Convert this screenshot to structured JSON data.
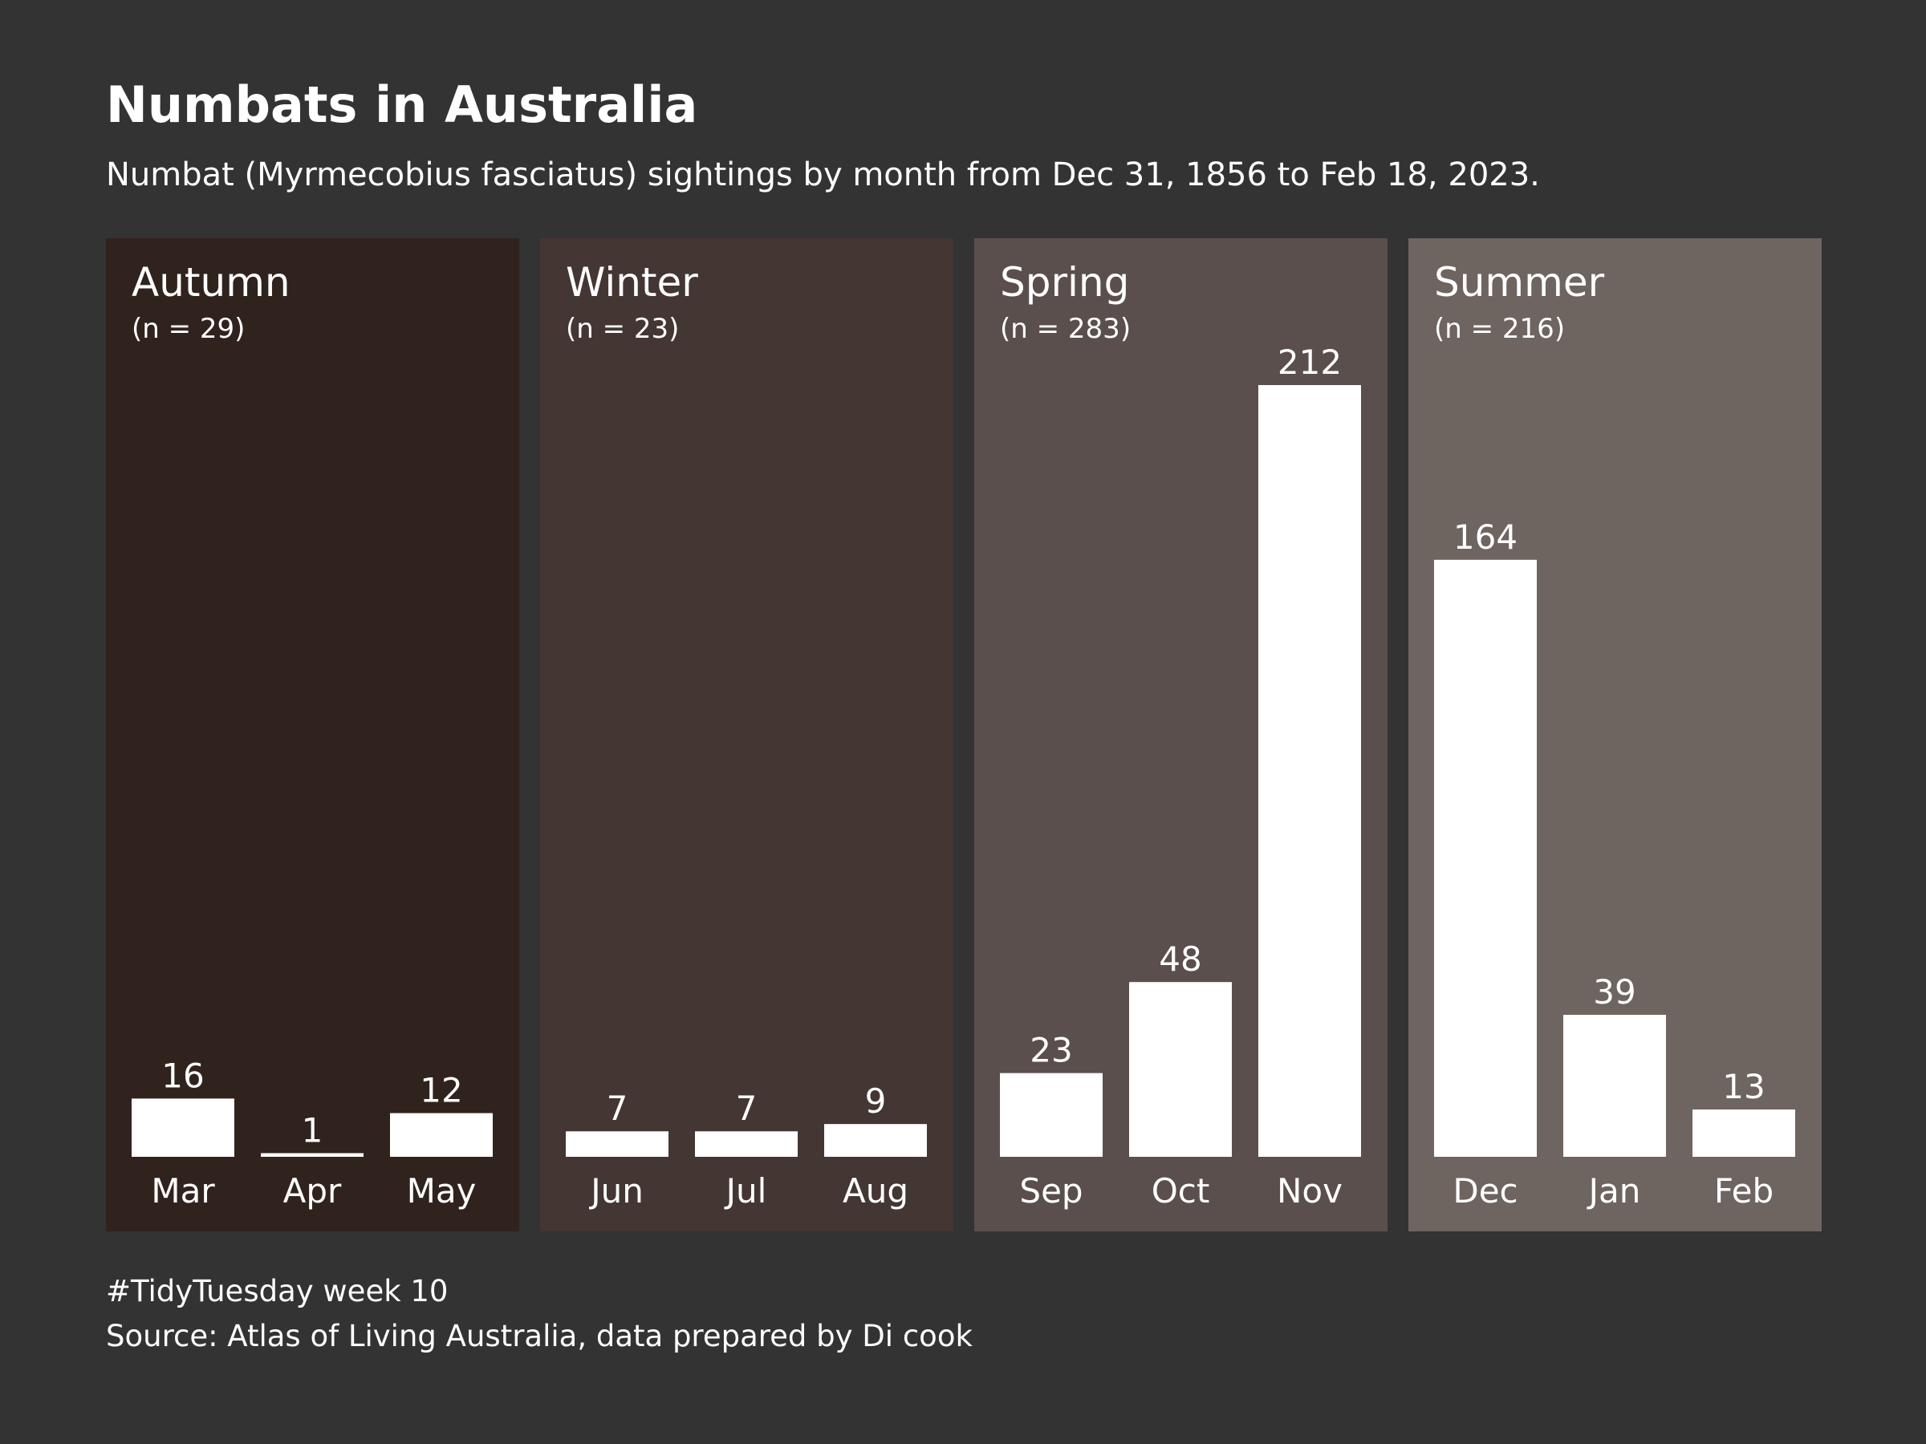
{
  "title": "Numbats in Australia",
  "subtitle": "Numbat (Myrmecobius fasciatus) sightings by month from Dec 31, 1856 to Feb 18, 2023.",
  "footer": {
    "line1": "#TidyTuesday week 10",
    "line2": "Source: Atlas of Living Australia, data prepared by Di cook"
  },
  "colors": {
    "background": "#333333",
    "bar": "#ffffff",
    "text": "#ffffff",
    "autumn": "#30231d",
    "winter": "#433633",
    "spring": "#5a4f4c",
    "summer": "#6e6460"
  },
  "chart_data": {
    "type": "bar",
    "facet_by": "season",
    "ylim": [
      0,
      212
    ],
    "grid": false,
    "legend": "none",
    "panels": [
      {
        "season": "Autumn",
        "n_label": "(n = 29)",
        "color": "#30231d",
        "categories": [
          "Mar",
          "Apr",
          "May"
        ],
        "values": [
          16,
          1,
          12
        ]
      },
      {
        "season": "Winter",
        "n_label": "(n = 23)",
        "color": "#433633",
        "categories": [
          "Jun",
          "Jul",
          "Aug"
        ],
        "values": [
          7,
          7,
          9
        ]
      },
      {
        "season": "Spring",
        "n_label": "(n = 283)",
        "color": "#5a4f4c",
        "categories": [
          "Sep",
          "Oct",
          "Nov"
        ],
        "values": [
          23,
          48,
          212
        ]
      },
      {
        "season": "Summer",
        "n_label": "(n = 216)",
        "color": "#6e6460",
        "categories": [
          "Dec",
          "Jan",
          "Feb"
        ],
        "values": [
          164,
          39,
          13
        ]
      }
    ]
  }
}
